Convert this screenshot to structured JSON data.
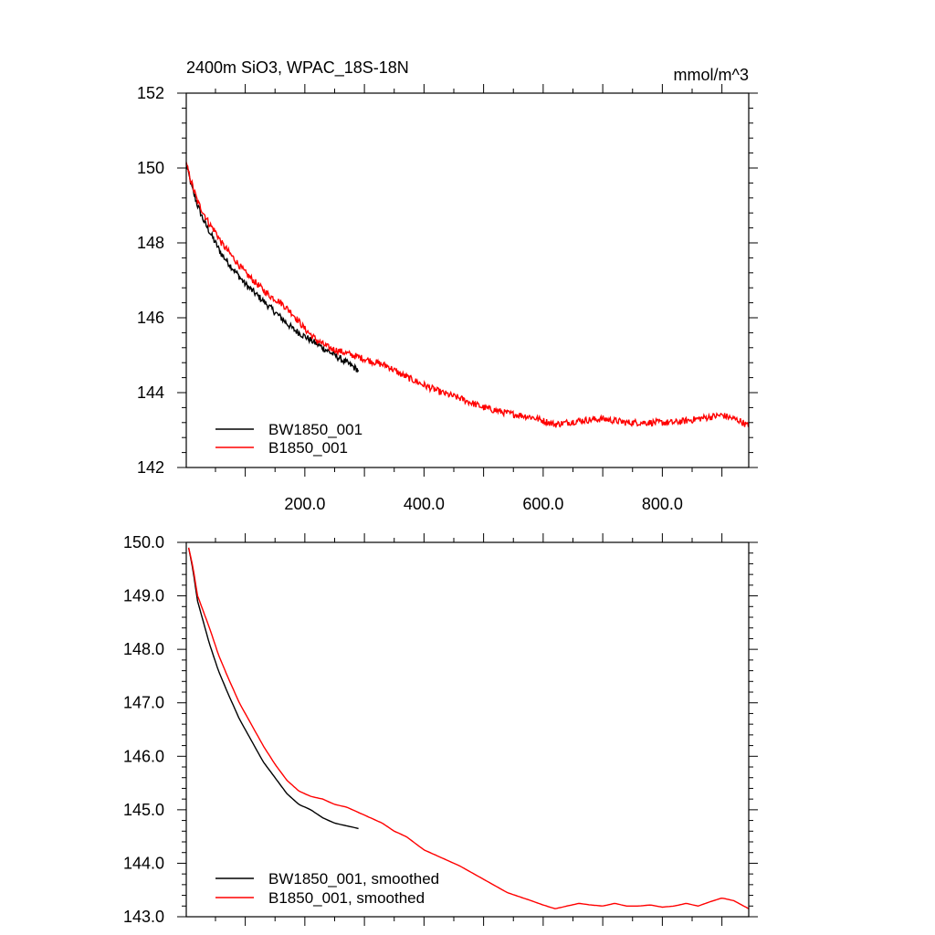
{
  "colors": {
    "bw1850": "#000000",
    "b1850": "#ff0000",
    "axis": "#000000",
    "background": "#ffffff"
  },
  "chart_data": [
    {
      "type": "line",
      "title": "2400m SiO3, WPAC_18S-18N",
      "units": "mmol/m^3",
      "xlim": [
        1,
        945
      ],
      "ylim": [
        142,
        152
      ],
      "xticks": [
        200,
        400,
        600,
        800
      ],
      "xtick_labels": [
        "200.0",
        "400.0",
        "600.0",
        "800.0"
      ],
      "yticks": [
        142,
        144,
        146,
        148,
        150,
        152
      ],
      "ytick_labels": [
        "142",
        "144",
        "146",
        "148",
        "150",
        "152"
      ],
      "noise": 0.09,
      "legend_position": "bottom-left",
      "series": [
        {
          "name": "BW1850_001",
          "color": "#000000",
          "x": [
            1,
            10,
            20,
            30,
            40,
            50,
            60,
            80,
            100,
            120,
            140,
            160,
            180,
            200,
            220,
            240,
            260,
            280,
            290
          ],
          "values": [
            150.1,
            149.5,
            149.0,
            148.6,
            148.3,
            148.0,
            147.7,
            147.3,
            146.9,
            146.6,
            146.3,
            146.0,
            145.7,
            145.5,
            145.3,
            145.1,
            144.9,
            144.7,
            144.6
          ]
        },
        {
          "name": "B1850_001",
          "color": "#ff0000",
          "x": [
            1,
            10,
            20,
            30,
            40,
            50,
            60,
            80,
            100,
            120,
            140,
            160,
            180,
            200,
            220,
            240,
            260,
            280,
            300,
            320,
            340,
            360,
            380,
            400,
            430,
            460,
            500,
            540,
            580,
            620,
            660,
            700,
            740,
            780,
            820,
            860,
            900,
            930,
            945
          ],
          "values": [
            150.1,
            149.6,
            149.1,
            148.8,
            148.5,
            148.3,
            148.0,
            147.6,
            147.2,
            146.9,
            146.6,
            146.4,
            146.1,
            145.7,
            145.4,
            145.2,
            145.1,
            145.0,
            144.9,
            144.8,
            144.7,
            144.5,
            144.35,
            144.2,
            144.0,
            143.85,
            143.6,
            143.45,
            143.35,
            143.15,
            143.25,
            143.3,
            143.2,
            143.2,
            143.2,
            143.3,
            143.4,
            143.25,
            143.1
          ]
        }
      ]
    },
    {
      "type": "line",
      "title": "",
      "units": "",
      "xlim": [
        1,
        945
      ],
      "ylim": [
        143.0,
        150.0
      ],
      "xticks": [
        200,
        400,
        600,
        800
      ],
      "xtick_labels": [],
      "yticks": [
        143,
        144,
        145,
        146,
        147,
        148,
        149,
        150
      ],
      "ytick_labels": [
        "143.0",
        "144.0",
        "145.0",
        "146.0",
        "147.0",
        "148.0",
        "149.0",
        "150.0"
      ],
      "noise": 0.0,
      "legend_position": "bottom-left",
      "series": [
        {
          "name": "BW1850_001, smoothed",
          "color": "#000000",
          "x": [
            5,
            12,
            20,
            30,
            40,
            55,
            70,
            90,
            110,
            130,
            150,
            170,
            190,
            210,
            230,
            250,
            270,
            290
          ],
          "values": [
            149.9,
            149.5,
            148.9,
            148.5,
            148.1,
            147.6,
            147.2,
            146.7,
            146.3,
            145.9,
            145.6,
            145.3,
            145.1,
            145.0,
            144.85,
            144.75,
            144.7,
            144.65
          ]
        },
        {
          "name": "B1850_001, smoothed",
          "color": "#ff0000",
          "x": [
            5,
            12,
            20,
            30,
            40,
            55,
            70,
            90,
            110,
            130,
            150,
            170,
            190,
            210,
            230,
            250,
            270,
            290,
            310,
            330,
            350,
            370,
            400,
            430,
            460,
            500,
            540,
            580,
            600,
            620,
            640,
            660,
            680,
            700,
            720,
            740,
            760,
            780,
            800,
            820,
            840,
            860,
            880,
            900,
            920,
            945
          ],
          "values": [
            149.9,
            149.55,
            149.0,
            148.7,
            148.4,
            147.9,
            147.5,
            147.0,
            146.6,
            146.2,
            145.85,
            145.55,
            145.35,
            145.25,
            145.2,
            145.1,
            145.05,
            144.95,
            144.85,
            144.75,
            144.6,
            144.5,
            144.25,
            144.1,
            143.95,
            143.7,
            143.45,
            143.3,
            143.22,
            143.15,
            143.2,
            143.25,
            143.22,
            143.2,
            143.25,
            143.2,
            143.2,
            143.22,
            143.18,
            143.2,
            143.25,
            143.2,
            143.28,
            143.35,
            143.3,
            143.15
          ]
        }
      ]
    }
  ]
}
